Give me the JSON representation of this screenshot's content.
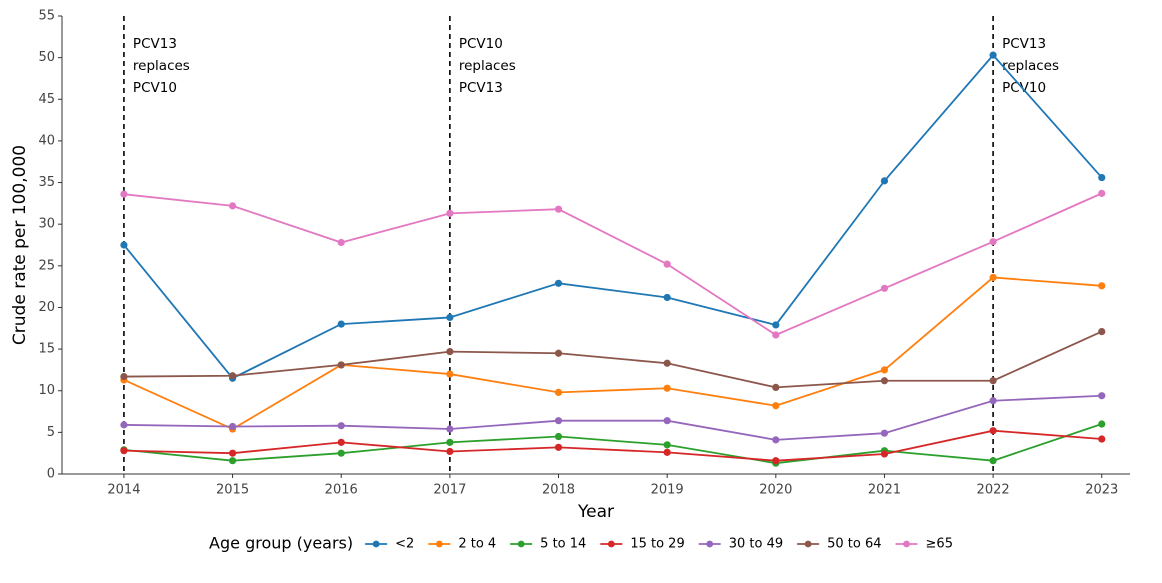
{
  "chart_data": {
    "type": "line",
    "x_label": "Year",
    "y_label": "Crude rate per 100,000",
    "legend_title": "Age group (years)",
    "legend_position": "bottom",
    "x": [
      2014,
      2015,
      2016,
      2017,
      2018,
      2019,
      2020,
      2021,
      2022,
      2023
    ],
    "xlim": [
      2013.43,
      2023.26
    ],
    "xticks": [
      2014,
      2015,
      2016,
      2017,
      2018,
      2019,
      2020,
      2021,
      2022,
      2023
    ],
    "ylim": [
      0,
      55
    ],
    "yticks": [
      0,
      5,
      10,
      15,
      20,
      25,
      30,
      35,
      40,
      45,
      50,
      55
    ],
    "grid": false,
    "series": [
      {
        "name": "<2",
        "color": "#1f77b4",
        "values": [
          27.5,
          11.5,
          18.0,
          18.8,
          22.9,
          21.2,
          17.9,
          35.2,
          50.3,
          35.6
        ]
      },
      {
        "name": "2 to 4",
        "color": "#ff7f0e",
        "values": [
          11.3,
          5.4,
          13.1,
          12.0,
          9.8,
          10.3,
          8.2,
          12.5,
          23.6,
          22.6
        ]
      },
      {
        "name": "5 to 14",
        "color": "#2ca02c",
        "values": [
          2.9,
          1.6,
          2.5,
          3.8,
          4.5,
          3.5,
          1.3,
          2.8,
          1.6,
          6.0
        ]
      },
      {
        "name": "15 to 29",
        "color": "#d62728",
        "values": [
          2.8,
          2.5,
          3.8,
          2.7,
          3.2,
          2.6,
          1.6,
          2.4,
          5.2,
          4.2
        ]
      },
      {
        "name": "30 to 49",
        "color": "#9467bd",
        "values": [
          5.9,
          5.7,
          5.8,
          5.4,
          6.4,
          6.4,
          4.1,
          4.9,
          8.8,
          9.4
        ]
      },
      {
        "name": "50 to 64",
        "color": "#8c564b",
        "values": [
          11.7,
          11.8,
          13.1,
          14.7,
          14.5,
          13.3,
          10.4,
          11.2,
          11.2,
          17.1
        ]
      },
      {
        "name": "≥65",
        "color": "#e377c2",
        "values": [
          33.6,
          32.2,
          27.8,
          31.3,
          31.8,
          25.2,
          16.7,
          22.3,
          27.9,
          33.7
        ]
      }
    ],
    "annotations": [
      {
        "x": 2014,
        "lines": [
          "PCV13",
          "replaces",
          "PCV10"
        ]
      },
      {
        "x": 2017,
        "lines": [
          "PCV10",
          "replaces",
          "PCV13"
        ]
      },
      {
        "x": 2022,
        "lines": [
          "PCV13",
          "replaces",
          "PCV10"
        ]
      }
    ]
  }
}
